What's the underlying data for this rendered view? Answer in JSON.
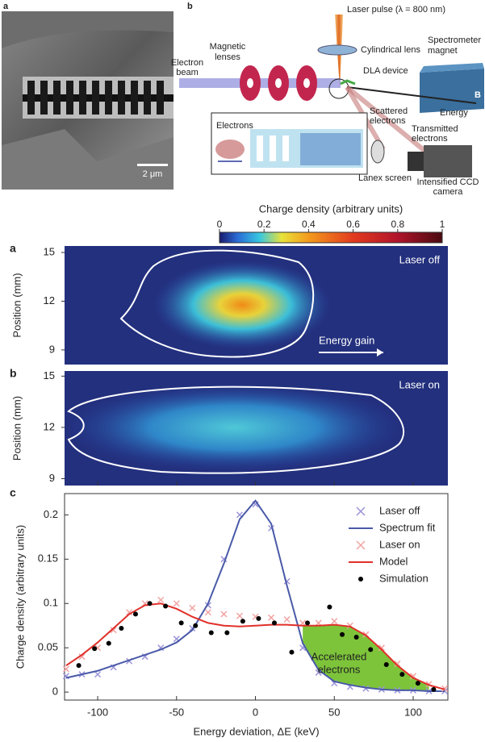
{
  "top": {
    "panel_a": {
      "label": "a",
      "scale_bar": "2 μm"
    },
    "panel_b": {
      "label": "b",
      "laser": "Laser pulse (λ = 800 nm)",
      "lens": "Cylindrical lens",
      "spectrometer": [
        "Spectrometer",
        "magnet"
      ],
      "magnetic": [
        "Magnetic",
        "lenses"
      ],
      "beam": [
        "Electron",
        "beam"
      ],
      "dla": "DLA device",
      "energy": "Energy",
      "field": "B",
      "electrons": "Electrons",
      "scattered": [
        "Scattered",
        "electrons"
      ],
      "transmitted": [
        "Transmitted",
        "electrons"
      ],
      "screen": "Lanex screen",
      "camera": [
        "Intensified CCD",
        "camera"
      ]
    }
  },
  "colorbar": {
    "title": "Charge density (arbitrary units)",
    "ticks": [
      0,
      0.2,
      0.4,
      0.6,
      0.8,
      1
    ],
    "lim": [
      0,
      1
    ]
  },
  "maps": [
    {
      "label": "a",
      "annotation": "Laser off",
      "arrow_label": "Energy gain",
      "ylabel": "Position (mm)",
      "yticks": [
        9,
        12,
        15
      ],
      "ylim": [
        8.1,
        15.4
      ]
    },
    {
      "label": "b",
      "annotation": "Laser on",
      "ylabel": "Position (mm)",
      "yticks": [
        9,
        12,
        15
      ],
      "ylim": [
        8.6,
        15.3
      ]
    }
  ],
  "chart_data": {
    "type": "line",
    "label": "c",
    "xlabel": "Energy deviation, ΔE (keV)",
    "ylabel": "Charge density (arbitrary units)",
    "annotation": [
      "Accelerated",
      "electrons"
    ],
    "fill_color": "#7dc43a",
    "xlim": [
      -121,
      122
    ],
    "ylim": [
      -0.009,
      0.224
    ],
    "xticks": [
      -100,
      -50,
      0,
      50,
      100
    ],
    "yticks": [
      0,
      0.05,
      0.1,
      0.15,
      0.2
    ],
    "x": [
      -120,
      -110,
      -100,
      -90,
      -80,
      -70,
      -60,
      -50,
      -40,
      -30,
      -20,
      -10,
      0,
      10,
      20,
      30,
      40,
      50,
      60,
      70,
      80,
      90,
      100,
      110,
      120
    ],
    "series": [
      {
        "name": "Laser off",
        "color": "#9b95d9",
        "marker": "x",
        "values": [
          0.018,
          0.02,
          0.02,
          0.028,
          0.035,
          0.04,
          0.05,
          0.06,
          0.072,
          0.098,
          0.15,
          0.2,
          0.212,
          0.185,
          0.125,
          0.05,
          0.022,
          0.01,
          0.006,
          0.004,
          0.003,
          0.002,
          0.002,
          0.001,
          0.001
        ]
      },
      {
        "name": "Spectrum fit",
        "color": "#4a5aa8",
        "marker": "line",
        "values": [
          0.016,
          0.02,
          0.024,
          0.03,
          0.036,
          0.042,
          0.048,
          0.056,
          0.07,
          0.1,
          0.145,
          0.195,
          0.216,
          0.19,
          0.12,
          0.055,
          0.025,
          0.012,
          0.008,
          0.005,
          0.003,
          0.002,
          0.002,
          0.001,
          0.001
        ]
      },
      {
        "name": "Laser on",
        "color": "#f2a3a3",
        "marker": "x",
        "values": [
          0.026,
          0.04,
          0.05,
          0.07,
          0.09,
          0.1,
          0.104,
          0.1,
          0.095,
          0.09,
          0.088,
          0.086,
          0.085,
          0.084,
          0.082,
          0.078,
          0.078,
          0.08,
          0.075,
          0.065,
          0.05,
          0.032,
          0.018,
          0.009,
          0.004
        ]
      },
      {
        "name": "Model",
        "color": "#e0302a",
        "marker": "line",
        "values": [
          0.03,
          0.042,
          0.056,
          0.072,
          0.088,
          0.098,
          0.1,
          0.094,
          0.085,
          0.078,
          0.075,
          0.074,
          0.075,
          0.076,
          0.076,
          0.075,
          0.075,
          0.076,
          0.074,
          0.064,
          0.048,
          0.03,
          0.016,
          0.008,
          0.003
        ]
      },
      {
        "name": "Simulation",
        "color": "#000000",
        "marker": "dot",
        "x": [
          -112,
          -102,
          -93,
          -85,
          -76,
          -67,
          -57,
          -47,
          -38,
          -28,
          -18,
          -8,
          2,
          12,
          23,
          33,
          47,
          55,
          64,
          73,
          83,
          93,
          103,
          113
        ],
        "values": [
          0.03,
          0.049,
          0.055,
          0.072,
          0.088,
          0.1,
          0.097,
          0.078,
          0.075,
          0.067,
          0.067,
          0.08,
          0.083,
          0.078,
          0.045,
          0.078,
          0.096,
          0.065,
          0.062,
          0.048,
          0.031,
          0.02,
          0.01,
          0.003
        ]
      }
    ]
  }
}
